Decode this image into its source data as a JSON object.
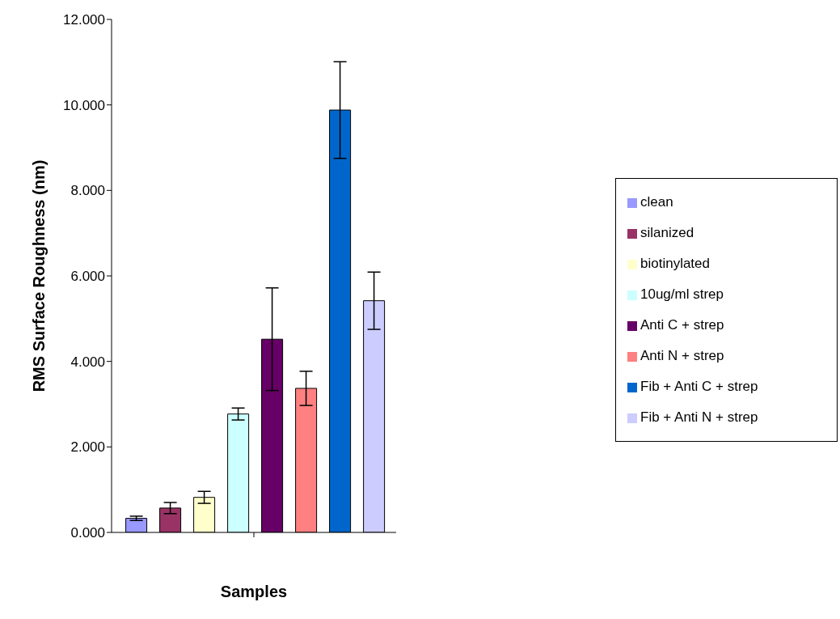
{
  "chart_data": {
    "type": "bar",
    "xlabel": "Samples",
    "ylabel": "RMS Surface Roughness (nm)",
    "categories": [
      null
    ],
    "series": [
      {
        "name": "clean",
        "color": "#9999ff",
        "values": [
          0.33
        ],
        "errors": [
          0.05
        ]
      },
      {
        "name": "silanized",
        "color": "#993366",
        "values": [
          0.57
        ],
        "errors": [
          0.13
        ]
      },
      {
        "name": "biotinylated",
        "color": "#ffffcc",
        "values": [
          0.82
        ],
        "errors": [
          0.14
        ]
      },
      {
        "name": "10ug/ml strep",
        "color": "#ccffff",
        "values": [
          2.77
        ],
        "errors": [
          0.14
        ]
      },
      {
        "name": "Anti C + strep",
        "color": "#660066",
        "values": [
          4.52
        ],
        "errors": [
          1.2
        ]
      },
      {
        "name": "Anti N + strep",
        "color": "#ff8080",
        "values": [
          3.37
        ],
        "errors": [
          0.4
        ]
      },
      {
        "name": "Fib + Anti C + strep",
        "color": "#0066cc",
        "values": [
          9.88
        ],
        "errors": [
          1.13
        ]
      },
      {
        "name": "Fib + Anti N + strep",
        "color": "#ccccff",
        "values": [
          5.42
        ],
        "errors": [
          0.67
        ]
      }
    ],
    "ylim": [
      0,
      12
    ],
    "yticks": [
      {
        "value": 0,
        "label": "0.000"
      },
      {
        "value": 2,
        "label": "2.000"
      },
      {
        "value": 4,
        "label": "4.000"
      },
      {
        "value": 6,
        "label": "6.000"
      },
      {
        "value": 8,
        "label": "8.000"
      },
      {
        "value": 10,
        "label": "10.000"
      },
      {
        "value": 12,
        "label": "12.000"
      }
    ],
    "grid": false,
    "legend": "right"
  }
}
